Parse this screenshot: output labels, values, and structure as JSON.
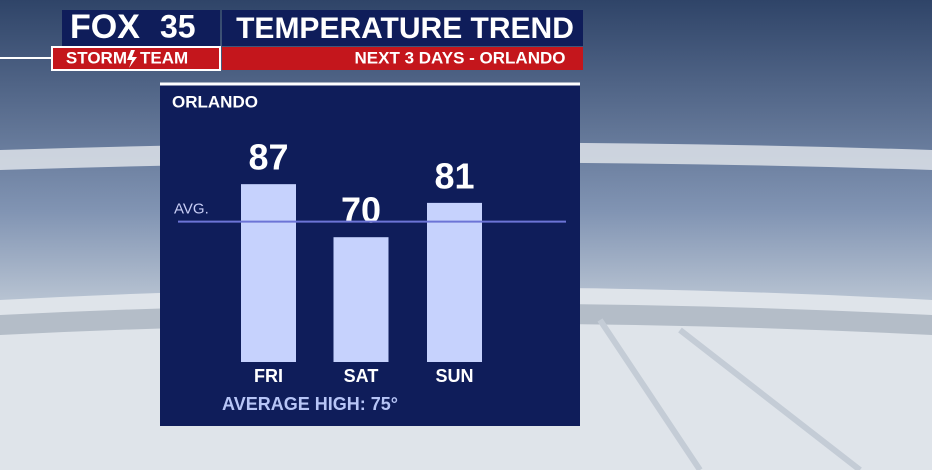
{
  "branding": {
    "network": "FOX",
    "channel": "35",
    "team_left": "STORM",
    "team_right": "TEAM"
  },
  "chart_data": {
    "type": "bar",
    "title": "TEMPERATURE TREND",
    "subtitle": "NEXT 3 DAYS - ORLANDO",
    "label": "ORLANDO",
    "categories": [
      "FRI",
      "SAT",
      "SUN"
    ],
    "values": [
      87,
      70,
      81
    ],
    "color": "#c6d2fd",
    "ylim": [
      30,
      100
    ],
    "average": {
      "label": "AVG.",
      "value": 75,
      "color": "#6c74d6"
    },
    "footer": "AVERAGE HIGH: 75°"
  }
}
